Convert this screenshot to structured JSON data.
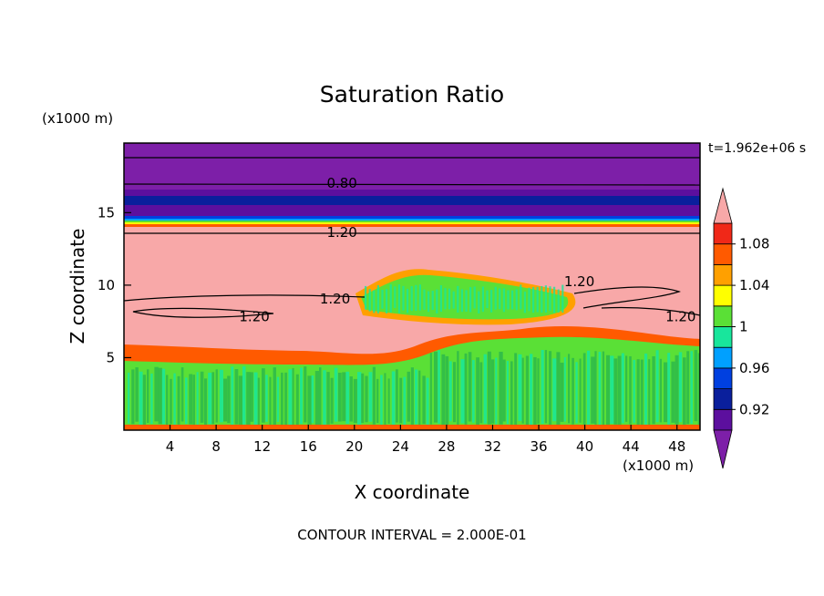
{
  "chart_data": {
    "type": "heatmap",
    "title": "Saturation Ratio",
    "xlabel": "X coordinate",
    "ylabel": "Z coordinate",
    "x_unit": "(x1000 m)",
    "y_unit": "(x1000 m)",
    "time_label": "t=1.962e+06 s",
    "footer": "CONTOUR INTERVAL = 2.000E-01",
    "xlim": [
      0,
      50
    ],
    "ylim": [
      0,
      19.8
    ],
    "xticks": [
      4,
      8,
      12,
      16,
      20,
      24,
      28,
      32,
      36,
      40,
      44,
      48
    ],
    "yticks": [
      5,
      10,
      15
    ],
    "contour_labels": [
      {
        "text": "0.80",
        "x": 17.6,
        "z": 17.1
      },
      {
        "text": "1.20",
        "x": 17.6,
        "z": 13.7
      },
      {
        "text": "1.20",
        "x": 17.0,
        "z": 9.1
      },
      {
        "text": "1.20",
        "x": 10.0,
        "z": 7.9
      },
      {
        "text": "1.20",
        "x": 38.2,
        "z": 10.3
      },
      {
        "text": "1.20",
        "x": 47.0,
        "z": 7.9
      }
    ],
    "colorbar": {
      "levels": [
        0.9,
        0.92,
        0.94,
        0.96,
        0.98,
        1.0,
        1.02,
        1.04,
        1.06,
        1.08,
        1.1
      ],
      "labels": [
        "0.92",
        "0.96",
        "1",
        "1.04",
        "1.08"
      ],
      "colors": [
        "#5c0f9e",
        "#0a1f9c",
        "#0040e0",
        "#00a0ff",
        "#18e69c",
        "#5ae036",
        "#ffff00",
        "#ffa000",
        "#ff5a00",
        "#f02818"
      ],
      "under_color": "#7d1fa8",
      "over_color": "#f8a8a8"
    }
  }
}
